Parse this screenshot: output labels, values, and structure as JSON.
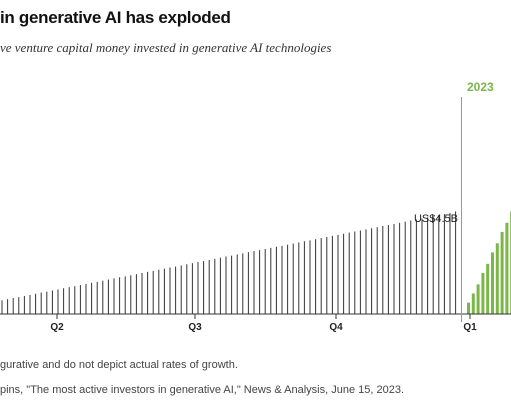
{
  "title": "in generative AI has exploded",
  "subtitle": "ve venture capital money invested in generative AI technologies",
  "note": "gurative and do not depict actual rates of growth.",
  "source": "pins, \"The most active investors in generative AI,\" News & Analysis, June 15, 2023.",
  "colors": {
    "series_2022": "#333333",
    "series_2023": "#7ab648",
    "year_label_2023": "#7ab648",
    "axis": "#333333"
  },
  "chart_data": {
    "type": "bar",
    "title": "in generative AI has exploded",
    "subtitle": "ve venture capital money invested in generative AI technologies",
    "xlabel": "",
    "ylabel": "",
    "grid": false,
    "legend": "none",
    "x_tick_labels": [
      "Q2",
      "Q3",
      "Q4",
      "Q1"
    ],
    "year_labels": [
      "2023"
    ],
    "annotations": [
      {
        "text": "US$4.5B",
        "series": "2022",
        "at": "last"
      }
    ],
    "ylim": [
      0,
      10
    ],
    "series": [
      {
        "name": "",
        "period": "2022",
        "values": [
          0.6,
          0.65,
          0.7,
          0.74,
          0.79,
          0.84,
          0.89,
          0.94,
          0.98,
          1.03,
          1.08,
          1.13,
          1.18,
          1.22,
          1.27,
          1.32,
          1.37,
          1.41,
          1.46,
          1.51,
          1.56,
          1.61,
          1.65,
          1.7,
          1.75,
          1.8,
          1.85,
          1.89,
          1.94,
          1.99,
          2.04,
          2.08,
          2.13,
          2.18,
          2.23,
          2.28,
          2.32,
          2.37,
          2.42,
          2.47,
          2.52,
          2.56,
          2.61,
          2.66,
          2.71,
          2.76,
          2.8,
          2.85,
          2.9,
          2.95,
          2.99,
          3.04,
          3.09,
          3.14,
          3.19,
          3.23,
          3.28,
          3.33,
          3.38,
          3.43,
          3.47,
          3.52,
          3.57,
          3.62,
          3.66,
          3.71,
          3.76,
          3.81,
          3.86,
          3.9,
          3.95,
          4.0,
          4.05,
          4.1,
          4.14,
          4.19,
          4.24,
          4.29,
          4.34,
          4.38,
          4.43,
          4.5
        ]
      },
      {
        "name": "",
        "period": "2023",
        "values": [
          0.5,
          0.9,
          1.3,
          1.8,
          2.2,
          2.7,
          3.1,
          3.6,
          4.0,
          4.5
        ]
      }
    ]
  }
}
